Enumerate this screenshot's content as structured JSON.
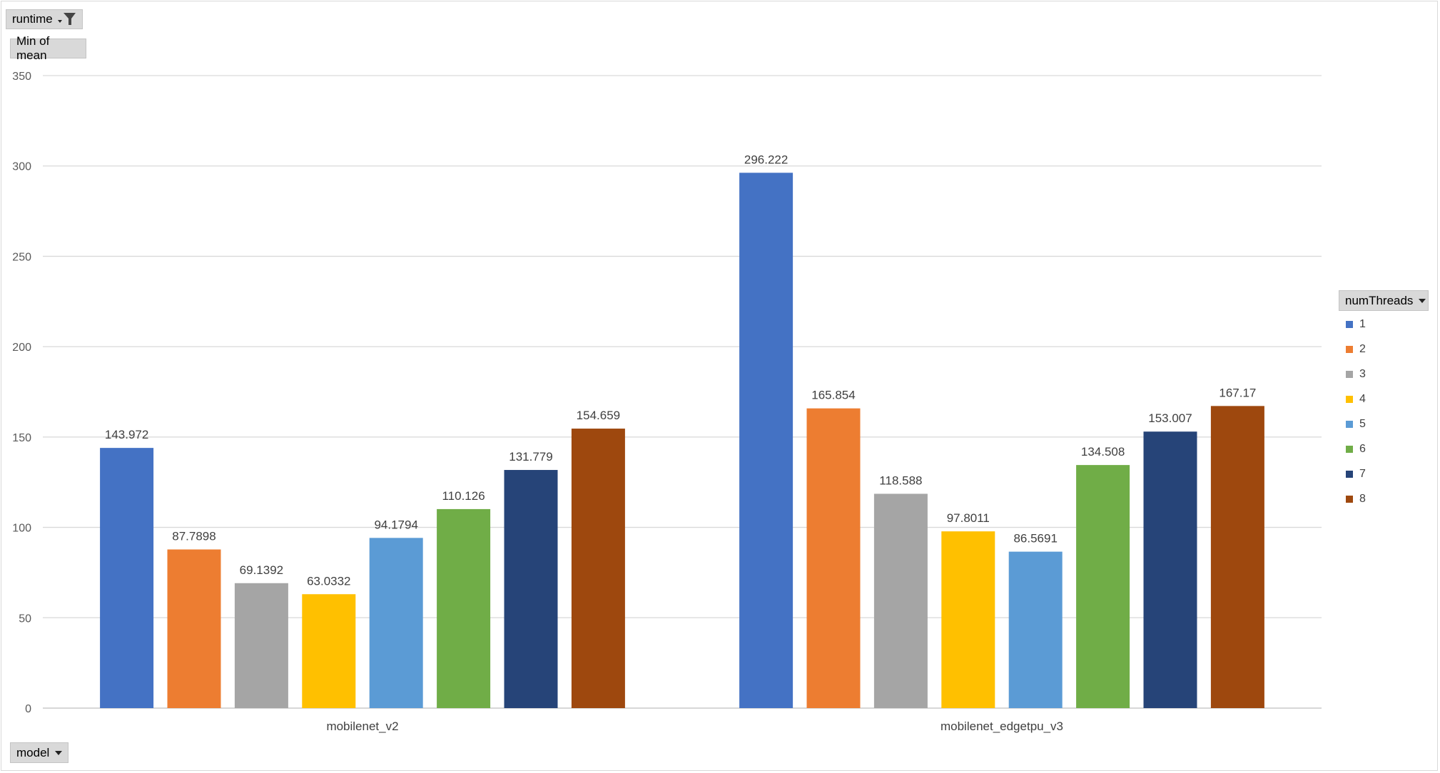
{
  "filters": {
    "runtime_label": "runtime",
    "value_label": "Min of mean",
    "legend_field_label": "numThreads",
    "axis_field_label": "model"
  },
  "icons": {
    "runtime_filter": "funnel-filter-icon",
    "dropdown": "chevron-down-icon"
  },
  "chart_data": {
    "type": "bar",
    "categories": [
      "mobilenet_v2",
      "mobilenet_edgetpu_v3"
    ],
    "ylim": [
      0,
      350
    ],
    "yticks": [
      0,
      50,
      100,
      150,
      200,
      250,
      300,
      350
    ],
    "grid": true,
    "legend_title": "numThreads",
    "legend_position": "right",
    "series": [
      {
        "name": "1",
        "color": "#4472c4",
        "values": [
          143.972,
          296.222
        ],
        "labels": [
          "143.972",
          "296.222"
        ]
      },
      {
        "name": "2",
        "color": "#ed7d31",
        "values": [
          87.7898,
          165.854
        ],
        "labels": [
          "87.7898",
          "165.854"
        ]
      },
      {
        "name": "3",
        "color": "#a5a5a5",
        "values": [
          69.1392,
          118.588
        ],
        "labels": [
          "69.1392",
          "118.588"
        ]
      },
      {
        "name": "4",
        "color": "#ffc000",
        "values": [
          63.0332,
          97.8011
        ],
        "labels": [
          "63.0332",
          "97.8011"
        ]
      },
      {
        "name": "5",
        "color": "#5b9bd5",
        "values": [
          94.1794,
          86.5691
        ],
        "labels": [
          "94.1794",
          "86.5691"
        ]
      },
      {
        "name": "6",
        "color": "#70ad47",
        "values": [
          110.126,
          134.508
        ],
        "labels": [
          "110.126",
          "134.508"
        ]
      },
      {
        "name": "7",
        "color": "#264478",
        "values": [
          131.779,
          153.007
        ],
        "labels": [
          "131.779",
          "153.007"
        ]
      },
      {
        "name": "8",
        "color": "#9e480e",
        "values": [
          154.659,
          167.17
        ],
        "labels": [
          "154.659",
          "167.17"
        ]
      }
    ]
  }
}
